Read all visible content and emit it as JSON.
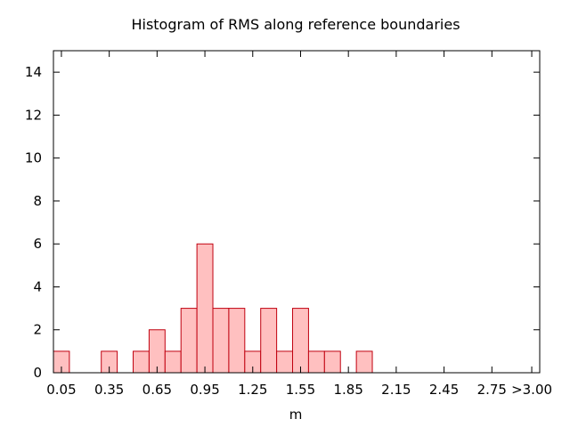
{
  "chart_data": {
    "type": "bar",
    "title": "Histogram of RMS along reference boundaries",
    "xlabel": "m",
    "ylabel": "",
    "bin_width": 0.1,
    "x_tick_values": [
      0.05,
      0.35,
      0.65,
      0.95,
      1.25,
      1.55,
      1.85,
      2.15,
      2.45,
      2.75,
      3.0
    ],
    "x_tick_labels": [
      "0.05",
      "0.35",
      "0.65",
      "0.95",
      "1.25",
      "1.55",
      "1.85",
      "2.15",
      "2.45",
      "2.75",
      ">3.00"
    ],
    "y_ticks": [
      0,
      2,
      4,
      6,
      8,
      10,
      12,
      14
    ],
    "xlim": [
      0.0,
      3.05
    ],
    "ylim": [
      0,
      15
    ],
    "categories": [
      0.05,
      0.35,
      0.55,
      0.65,
      0.75,
      0.85,
      0.95,
      1.05,
      1.15,
      1.25,
      1.35,
      1.45,
      1.55,
      1.65,
      1.75,
      1.95
    ],
    "values": [
      1,
      1,
      1,
      2,
      1,
      3,
      6,
      3,
      3,
      1,
      3,
      1,
      3,
      1,
      1,
      1
    ],
    "fill_color": "#ffc0c0",
    "stroke_color": "#c0000f",
    "grid": false
  }
}
